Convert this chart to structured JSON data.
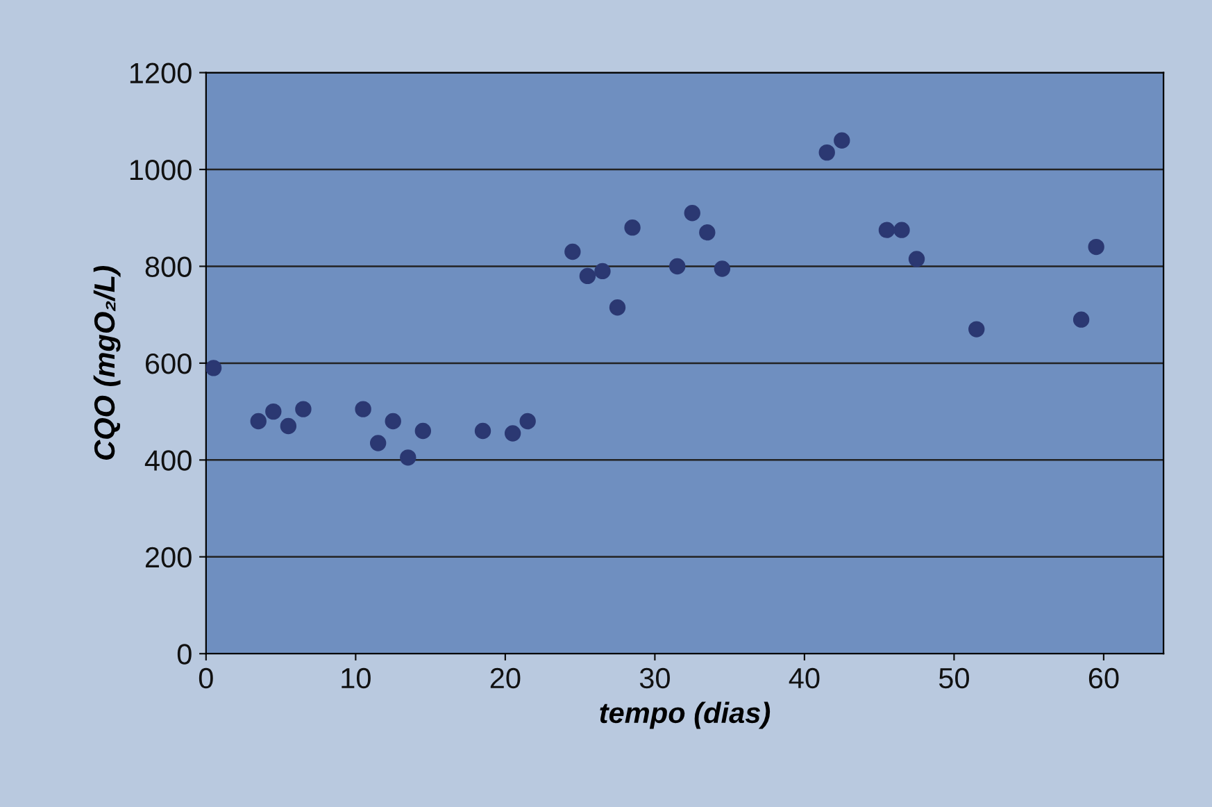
{
  "chart_data": {
    "type": "scatter",
    "xlabel": "tempo (dias)",
    "ylabel": "CQO (mgO₂/L)",
    "xlim": [
      0,
      64
    ],
    "xticks": [
      0,
      10,
      20,
      30,
      40,
      50,
      60
    ],
    "ylim": [
      0,
      1200
    ],
    "yticks": [
      0,
      200,
      400,
      600,
      800,
      1000,
      1200
    ],
    "grid": "y",
    "marker": "circle",
    "series": [
      {
        "color": "#2b3872",
        "x": [
          0.5,
          3.5,
          4.5,
          5.5,
          6.5,
          10.5,
          11.5,
          12.5,
          13.5,
          14.5,
          18.5,
          20.5,
          21.5,
          24.5,
          25.5,
          26.5,
          27.5,
          28.5,
          31.5,
          32.5,
          33.5,
          34.5,
          41.5,
          42.5,
          45.5,
          46.5,
          47.5,
          51.5,
          58.5,
          59.5
        ],
        "values": [
          590,
          480,
          500,
          470,
          505,
          505,
          435,
          480,
          405,
          460,
          460,
          455,
          480,
          830,
          780,
          790,
          715,
          880,
          800,
          910,
          870,
          795,
          1035,
          1060,
          875,
          875,
          815,
          670,
          690,
          840
        ]
      }
    ]
  }
}
